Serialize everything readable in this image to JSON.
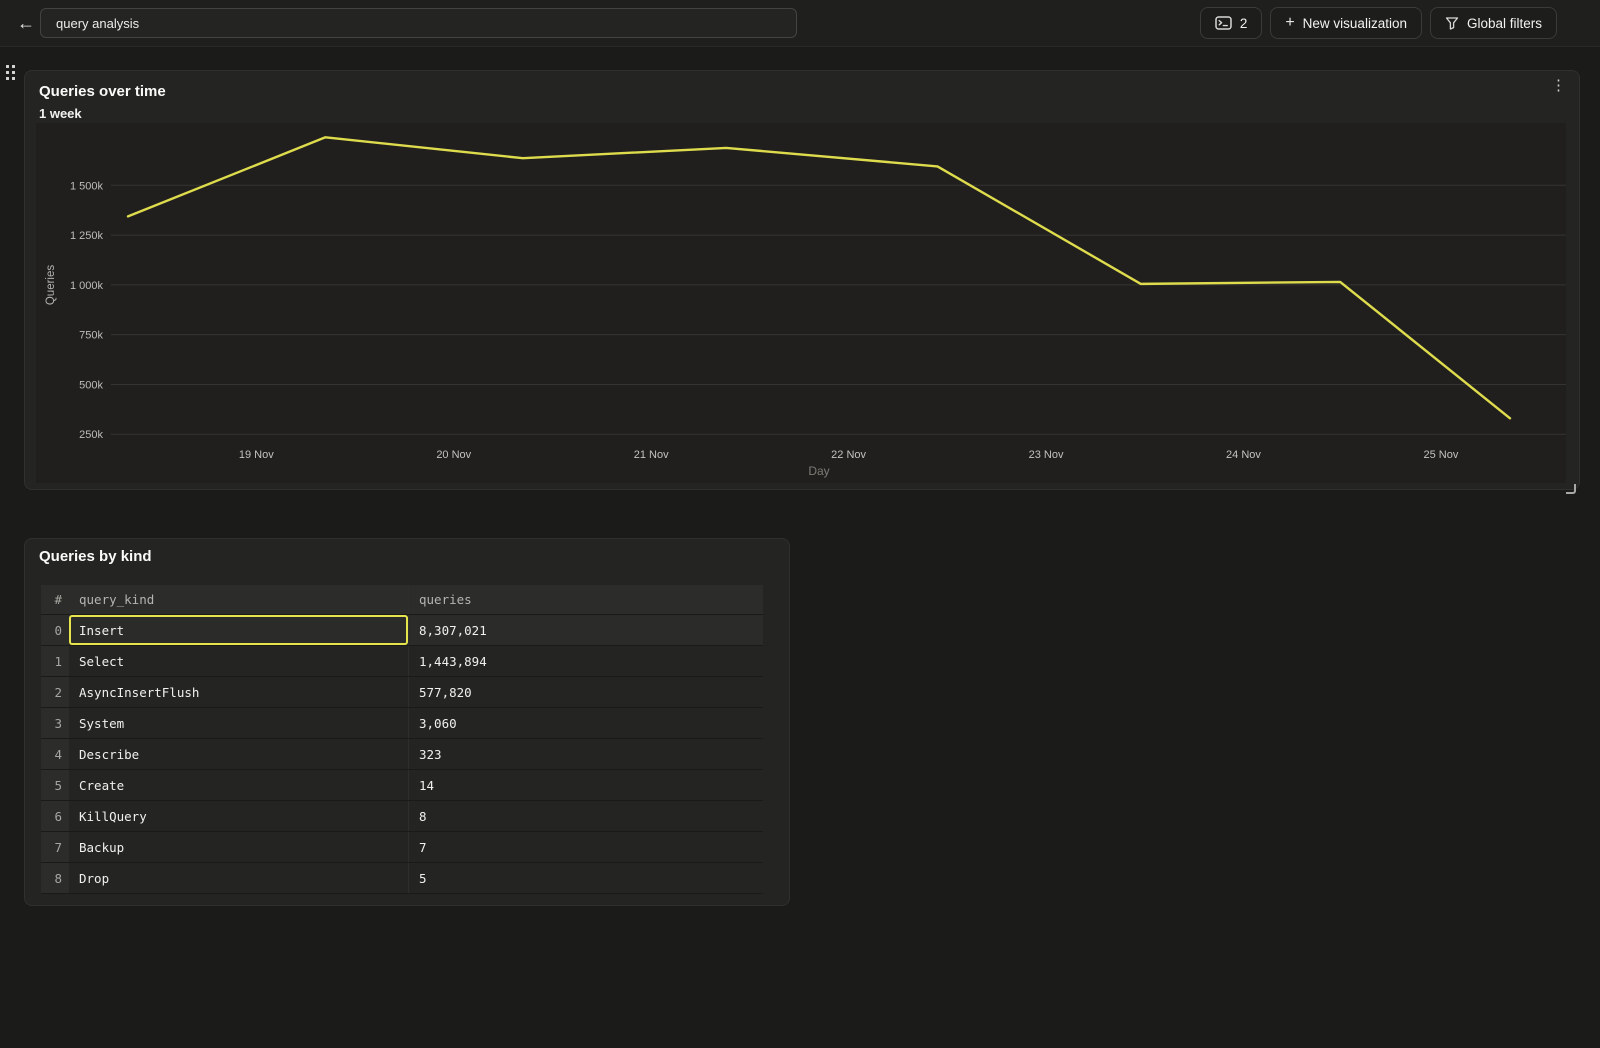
{
  "topbar": {
    "title_input": {
      "value": "query analysis"
    },
    "buttons": {
      "console_count": "2",
      "new_visualization": "New visualization",
      "global_filters": "Global filters"
    }
  },
  "icons": {
    "back": "←",
    "kebab": "⋮",
    "plus": "+"
  },
  "chart_panel": {
    "title": "Queries over time",
    "subtitle": "1 week"
  },
  "chart_data": {
    "type": "line",
    "title": "Queries over time",
    "subtitle": "1 week",
    "xlabel": "Day",
    "ylabel": "Queries",
    "grid": "horizontal",
    "legend": "none",
    "unit": "queries (values in thousands)",
    "ylim_k": [
      200,
      1800
    ],
    "xlim_day_nov": [
      18.35,
      25.35
    ],
    "y_ticks": [
      {
        "value_k": 250,
        "label": "250k"
      },
      {
        "value_k": 500,
        "label": "500k"
      },
      {
        "value_k": 750,
        "label": "750k"
      },
      {
        "value_k": 1000,
        "label": "1 000k"
      },
      {
        "value_k": 1250,
        "label": "1 250k"
      },
      {
        "value_k": 1500,
        "label": "1 500k"
      }
    ],
    "x_ticks": [
      {
        "day": 19,
        "label": "19 Nov"
      },
      {
        "day": 20,
        "label": "20 Nov"
      },
      {
        "day": 21,
        "label": "21 Nov"
      },
      {
        "day": 22,
        "label": "22 Nov"
      },
      {
        "day": 23,
        "label": "23 Nov"
      },
      {
        "day": 24,
        "label": "24 Nov"
      },
      {
        "day": 25,
        "label": "25 Nov"
      }
    ],
    "series": [
      {
        "name": "Queries",
        "color": "#dedc4c",
        "points": [
          {
            "x_day_nov": 18.35,
            "value_k": 1344
          },
          {
            "x_day_nov": 19.35,
            "value_k": 1741
          },
          {
            "x_day_nov": 20.35,
            "value_k": 1636
          },
          {
            "x_day_nov": 21.38,
            "value_k": 1688
          },
          {
            "x_day_nov": 22.45,
            "value_k": 1595
          },
          {
            "x_day_nov": 23.48,
            "value_k": 1005
          },
          {
            "x_day_nov": 24.49,
            "value_k": 1015
          },
          {
            "x_day_nov": 25.35,
            "value_k": 330
          }
        ]
      }
    ]
  },
  "table_panel": {
    "title": "Queries by kind",
    "columns": [
      "#",
      "query_kind",
      "queries"
    ],
    "rows": [
      {
        "index": "0",
        "query_kind": "Insert",
        "queries": "8,307,021",
        "selected": true
      },
      {
        "index": "1",
        "query_kind": "Select",
        "queries": "1,443,894",
        "selected": false
      },
      {
        "index": "2",
        "query_kind": "AsyncInsertFlush",
        "queries": "577,820",
        "selected": false
      },
      {
        "index": "3",
        "query_kind": "System",
        "queries": "3,060",
        "selected": false
      },
      {
        "index": "4",
        "query_kind": "Describe",
        "queries": "323",
        "selected": false
      },
      {
        "index": "5",
        "query_kind": "Create",
        "queries": "14",
        "selected": false
      },
      {
        "index": "6",
        "query_kind": "KillQuery",
        "queries": "8",
        "selected": false
      },
      {
        "index": "7",
        "query_kind": "Backup",
        "queries": "7",
        "selected": false
      },
      {
        "index": "8",
        "query_kind": "Drop",
        "queries": "5",
        "selected": false
      }
    ]
  },
  "colors": {
    "line_accent": "#dedc4c",
    "selection_border": "#e6e44d",
    "panel_bg": "#242422",
    "page_bg": "#1b1b19"
  }
}
